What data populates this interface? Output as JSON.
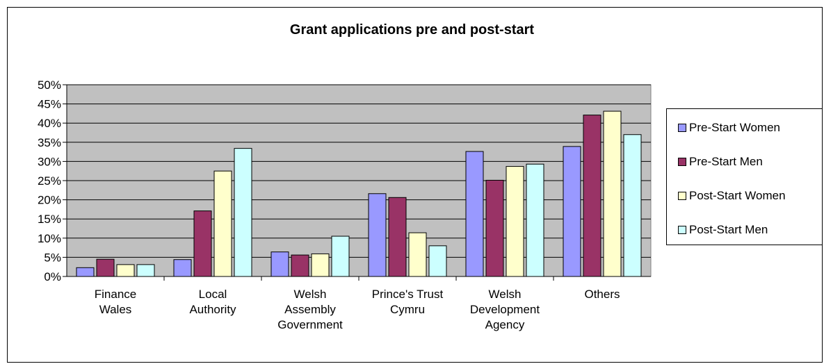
{
  "chart_data": {
    "type": "bar",
    "title": "Grant applications pre and post-start",
    "categories": [
      [
        "Finance",
        "Wales"
      ],
      [
        "Local",
        "Authority"
      ],
      [
        "Welsh",
        "Assembly",
        "Government"
      ],
      [
        "Prince's Trust",
        "Cymru"
      ],
      [
        "Welsh",
        "Development",
        "Agency"
      ],
      [
        "Others"
      ]
    ],
    "y_ticks": [
      "0%",
      "5%",
      "10%",
      "15%",
      "20%",
      "25%",
      "30%",
      "35%",
      "40%",
      "45%",
      "50%"
    ],
    "ylim": [
      0,
      50
    ],
    "grid": true,
    "legend_position": "right",
    "plot_background": "#c0c0c0",
    "series": [
      {
        "name": "Pre-Start Women",
        "color": "#9999ff",
        "values": [
          2.3,
          4.4,
          6.4,
          21.6,
          32.6,
          33.9
        ]
      },
      {
        "name": "Pre-Start Men",
        "color": "#993366",
        "values": [
          4.5,
          17.1,
          5.6,
          20.6,
          25.1,
          42.1
        ]
      },
      {
        "name": "Post-Start Women",
        "color": "#ffffcc",
        "values": [
          3.1,
          27.5,
          5.9,
          11.4,
          28.7,
          43.1
        ]
      },
      {
        "name": "Post-Start Men",
        "color": "#ccffff",
        "values": [
          3.1,
          33.4,
          10.5,
          8.0,
          29.3,
          37.0
        ]
      }
    ]
  }
}
